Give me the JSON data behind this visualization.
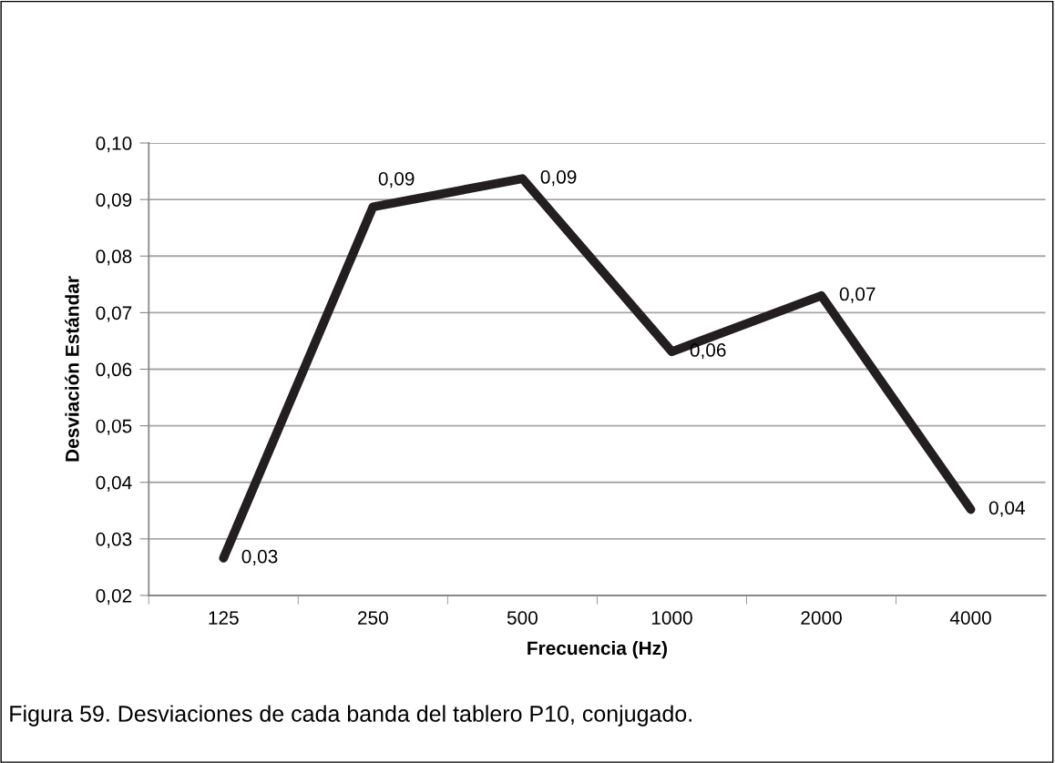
{
  "chart_data": {
    "type": "line",
    "xlabel": "Frecuencia (Hz)",
    "ylabel": "Desviación Estándar",
    "categories": [
      "125",
      "250",
      "500",
      "1000",
      "2000",
      "4000"
    ],
    "series": [
      {
        "color": "#231f20",
        "values": [
          0.0266,
          0.0887,
          0.0937,
          0.0631,
          0.073,
          0.0352
        ],
        "value_labels": [
          "0,03",
          "0,09",
          "0,09",
          "0,06",
          "0,07",
          "0,04"
        ]
      }
    ],
    "ylim": [
      0.02,
      0.1
    ],
    "yticks": [
      {
        "value": 0.02,
        "label": "0,02"
      },
      {
        "value": 0.03,
        "label": "0,03"
      },
      {
        "value": 0.04,
        "label": "0,04"
      },
      {
        "value": 0.05,
        "label": "0,05"
      },
      {
        "value": 0.06,
        "label": "0,06"
      },
      {
        "value": 0.07,
        "label": "0,07"
      },
      {
        "value": 0.08,
        "label": "0,08"
      },
      {
        "value": 0.09,
        "label": "0,09"
      },
      {
        "value": 0.1,
        "label": "0,10"
      }
    ],
    "grid": "y",
    "marker": "none",
    "line_style": "solid",
    "legend": false,
    "annotations": [
      "Figura 59. Desviaciones de cada banda del tablero P10, conjugado."
    ]
  }
}
